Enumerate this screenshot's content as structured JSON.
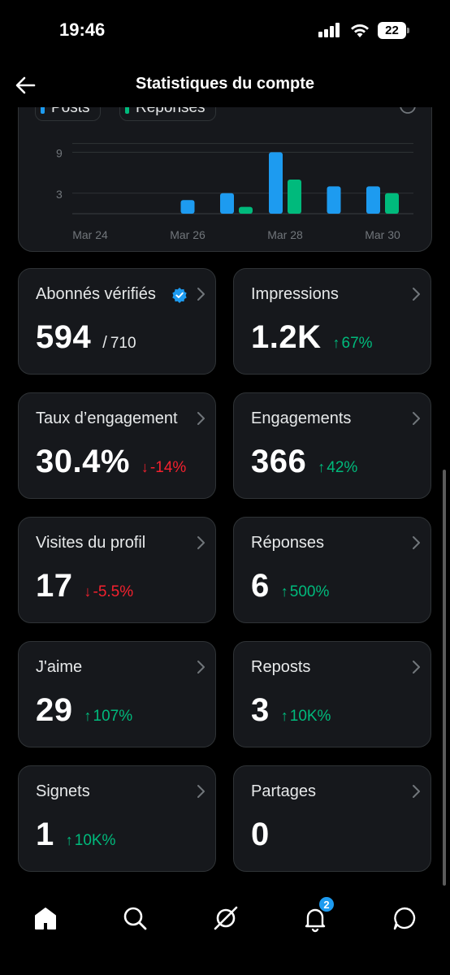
{
  "status_bar": {
    "time": "19:46",
    "battery": "22"
  },
  "header": {
    "title": "Statistiques du compte"
  },
  "legend": [
    {
      "label": "Posts",
      "color": "#1d9bf0"
    },
    {
      "label": "Réponses",
      "color": "#00ba7c"
    }
  ],
  "chart_data": {
    "type": "bar",
    "categories": [
      "Mar 24",
      "Mar 25",
      "Mar 26",
      "Mar 27",
      "Mar 28",
      "Mar 29",
      "Mar 30"
    ],
    "x_tick_labels": [
      "Mar 24",
      "Mar 26",
      "Mar 28",
      "Mar 30"
    ],
    "y_ticks": [
      3,
      9
    ],
    "ylim": [
      0,
      11
    ],
    "grid": true,
    "series": [
      {
        "name": "Posts",
        "color": "#1d9bf0",
        "values": [
          0,
          0,
          2,
          3,
          9,
          4,
          4
        ]
      },
      {
        "name": "Réponses",
        "color": "#00ba7c",
        "values": [
          0,
          0,
          0,
          1,
          5,
          0,
          3
        ]
      }
    ]
  },
  "cards": [
    {
      "label": "Abonnés vérifiés",
      "value": "594",
      "sub": "710",
      "verified": true
    },
    {
      "label": "Impressions",
      "value": "1.2K",
      "change": "67%",
      "direction": "up"
    },
    {
      "label": "Taux d’engagement",
      "value": "30.4%",
      "change": "-14%",
      "direction": "down"
    },
    {
      "label": "Engagements",
      "value": "366",
      "change": "42%",
      "direction": "up"
    },
    {
      "label": "Visites du profil",
      "value": "17",
      "change": "-5.5%",
      "direction": "down"
    },
    {
      "label": "Réponses",
      "value": "6",
      "change": "500%",
      "direction": "up"
    },
    {
      "label": "J'aime",
      "value": "29",
      "change": "107%",
      "direction": "up"
    },
    {
      "label": "Reposts",
      "value": "3",
      "change": "10K%",
      "direction": "up"
    },
    {
      "label": "Signets",
      "value": "1",
      "change": "10K%",
      "direction": "up"
    },
    {
      "label": "Partages",
      "value": "0"
    }
  ],
  "nav": {
    "items": [
      {
        "icon": "home-icon"
      },
      {
        "icon": "search-icon"
      },
      {
        "icon": "grok-icon"
      },
      {
        "icon": "notifications-icon"
      },
      {
        "icon": "messages-icon"
      }
    ],
    "notifications_badge": "2"
  }
}
